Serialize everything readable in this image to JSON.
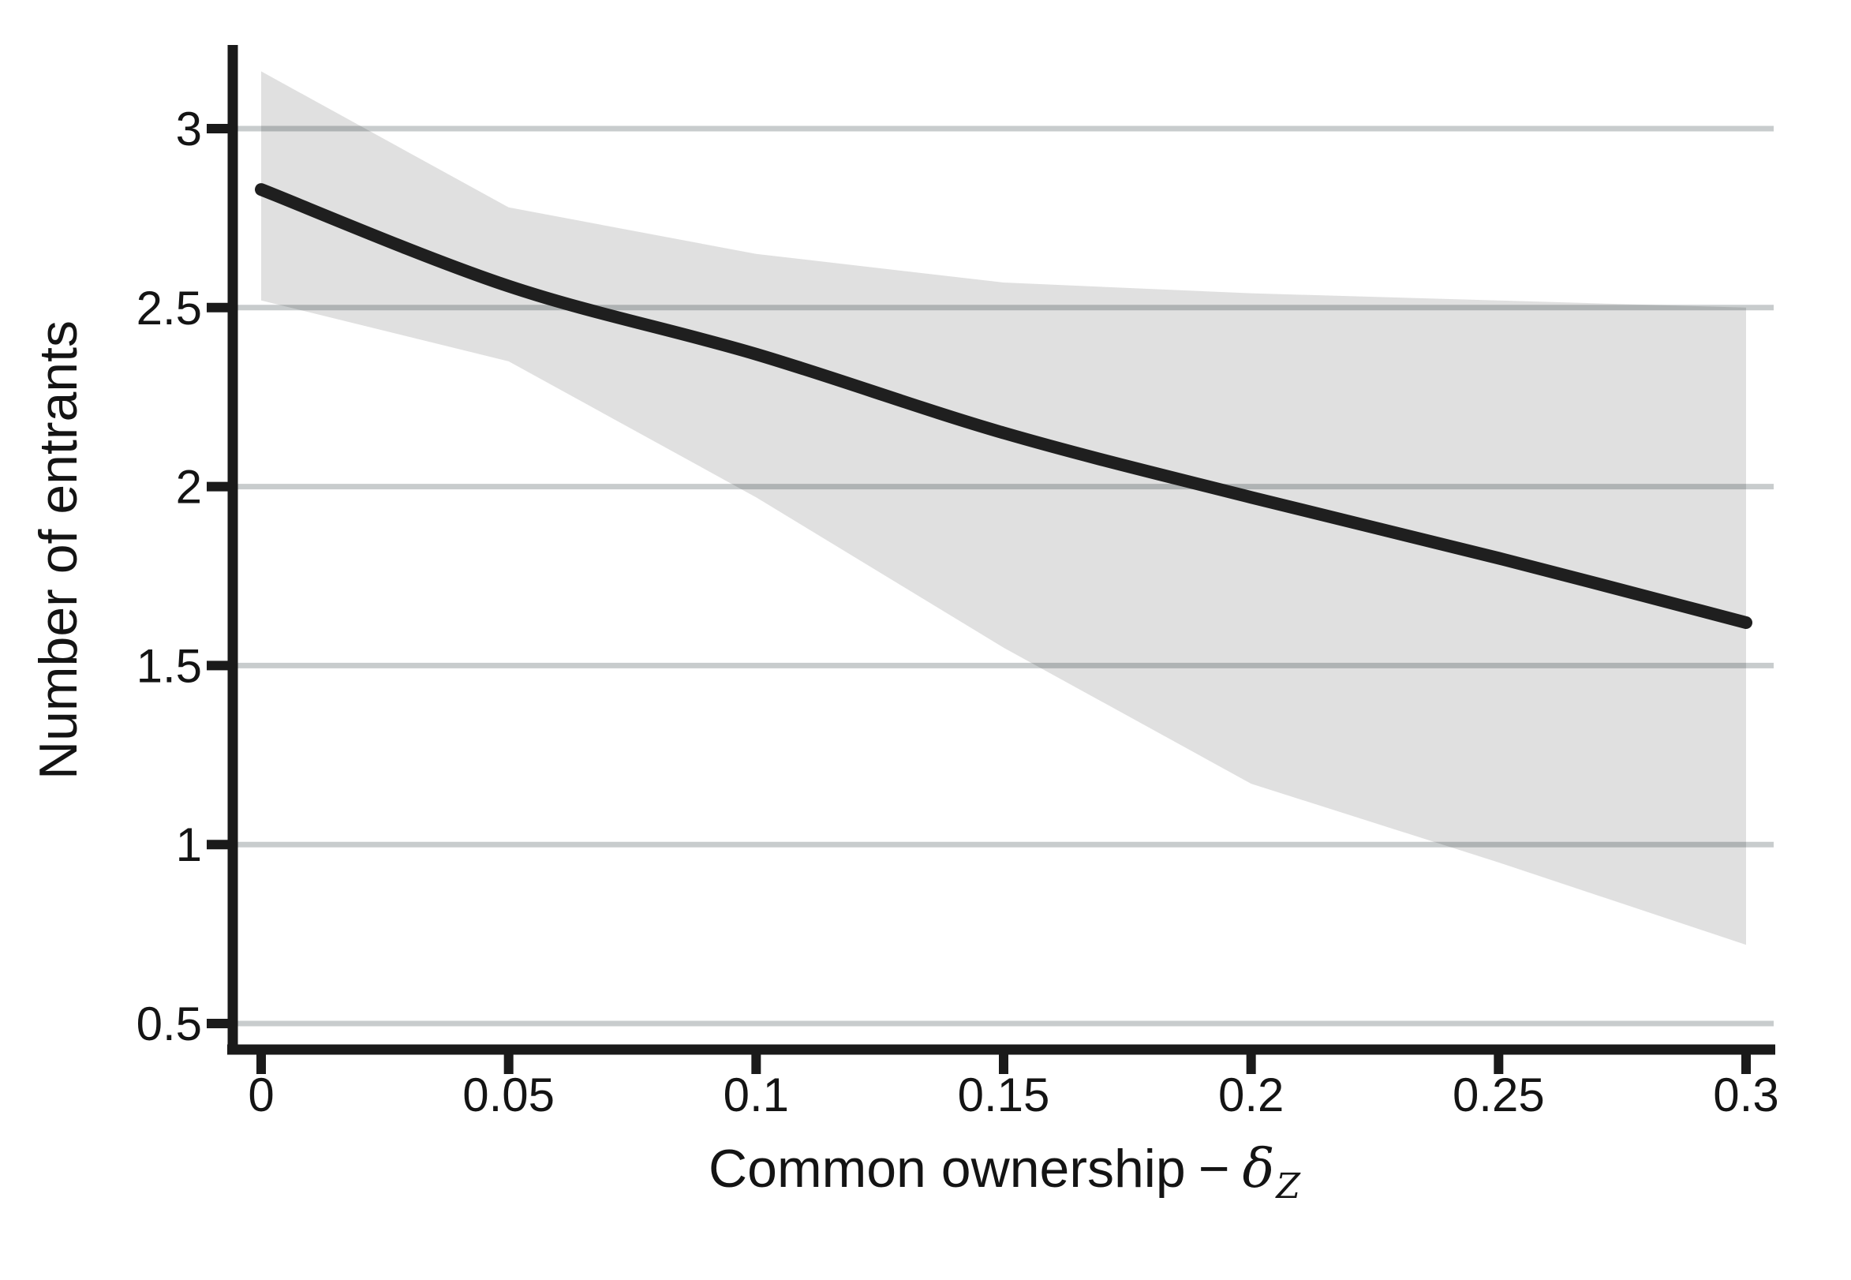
{
  "figure": {
    "background": "#ffffff",
    "x_axis_title": {
      "text": "Common ownership",
      "separator": "−",
      "symbol": "δ",
      "subscript": "Z"
    },
    "y_axis_title": "Number of entrants"
  },
  "chart_data": {
    "type": "line",
    "title": "",
    "xlabel": "Common ownership − δ_Z",
    "ylabel": "Number of entrants",
    "x": [
      0,
      0.05,
      0.1,
      0.15,
      0.2,
      0.25,
      0.3
    ],
    "series": [
      {
        "name": "point-estimate",
        "role": "line",
        "values": [
          2.83,
          2.56,
          2.37,
          2.15,
          1.97,
          1.8,
          1.62
        ],
        "color": "#1f1f1f"
      },
      {
        "name": "confidence-band-upper",
        "role": "band-upper",
        "values": [
          3.16,
          2.78,
          2.65,
          2.57,
          2.54,
          2.52,
          2.5
        ]
      },
      {
        "name": "confidence-band-lower",
        "role": "band-lower",
        "values": [
          2.52,
          2.35,
          1.97,
          1.55,
          1.17,
          0.95,
          0.72
        ]
      }
    ],
    "x_ticks": [
      0,
      0.05,
      0.1,
      0.15,
      0.2,
      0.25,
      0.3
    ],
    "x_tick_labels": [
      "0",
      "0.05",
      "0.1",
      "0.15",
      "0.2",
      "0.25",
      "0.3"
    ],
    "y_ticks": [
      0.5,
      1,
      1.5,
      2,
      2.5,
      3
    ],
    "y_tick_labels": [
      "0.5",
      "1",
      "1.5",
      "2",
      "2.5",
      "3"
    ],
    "xlim": [
      -0.007,
      0.306
    ],
    "ylim": [
      0.41,
      3.23
    ],
    "grid": "horizontal-only",
    "legend": "none",
    "colors": {
      "line": "#1f1f1f",
      "band_fill": "rgba(0,0,0,0.12)",
      "grid": "#c8cccd",
      "axis": "#1a1a1a",
      "text": "#141414",
      "background": "#ffffff"
    }
  }
}
